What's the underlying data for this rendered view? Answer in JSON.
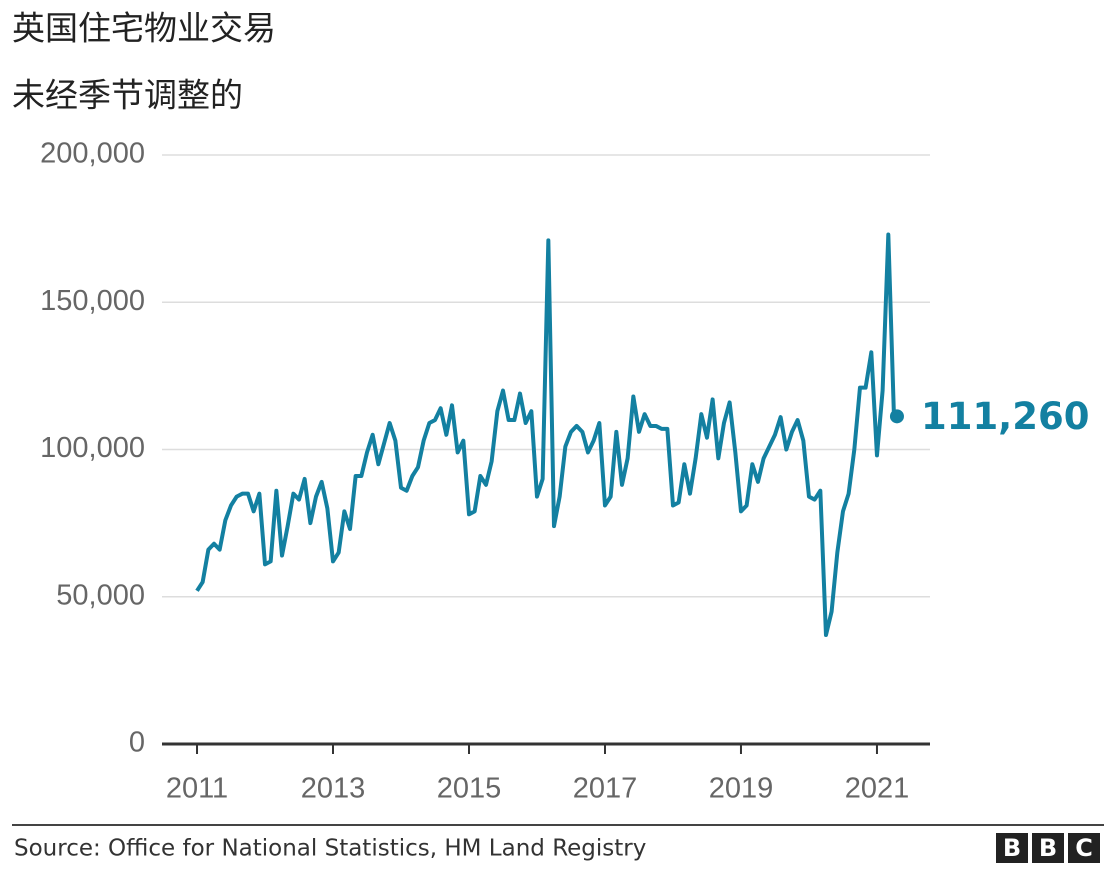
{
  "chart_data": {
    "type": "line",
    "title": "英国住宅物业交易",
    "subtitle": "未经季节调整的",
    "source": "Source: Office for National Statistics, HM Land Registry",
    "logo": [
      "B",
      "B",
      "C"
    ],
    "x": [
      2011,
      2011.083,
      2011.167,
      2011.25,
      2011.333,
      2011.417,
      2011.5,
      2011.583,
      2011.667,
      2011.75,
      2011.833,
      2011.917,
      2012,
      2012.083,
      2012.167,
      2012.25,
      2012.333,
      2012.417,
      2012.5,
      2012.583,
      2012.667,
      2012.75,
      2012.833,
      2012.917,
      2013,
      2013.083,
      2013.167,
      2013.25,
      2013.333,
      2013.417,
      2013.5,
      2013.583,
      2013.667,
      2013.75,
      2013.833,
      2013.917,
      2014,
      2014.083,
      2014.167,
      2014.25,
      2014.333,
      2014.417,
      2014.5,
      2014.583,
      2014.667,
      2014.75,
      2014.833,
      2014.917,
      2015,
      2015.083,
      2015.167,
      2015.25,
      2015.333,
      2015.417,
      2015.5,
      2015.583,
      2015.667,
      2015.75,
      2015.833,
      2015.917,
      2016,
      2016.083,
      2016.167,
      2016.25,
      2016.333,
      2016.417,
      2016.5,
      2016.583,
      2016.667,
      2016.75,
      2016.833,
      2016.917,
      2017,
      2017.083,
      2017.167,
      2017.25,
      2017.333,
      2017.417,
      2017.5,
      2017.583,
      2017.667,
      2017.75,
      2017.833,
      2017.917,
      2018,
      2018.083,
      2018.167,
      2018.25,
      2018.333,
      2018.417,
      2018.5,
      2018.583,
      2018.667,
      2018.75,
      2018.833,
      2018.917,
      2019,
      2019.083,
      2019.167,
      2019.25,
      2019.333,
      2019.417,
      2019.5,
      2019.583,
      2019.667,
      2019.75,
      2019.833,
      2019.917,
      2020,
      2020.083,
      2020.167,
      2020.25,
      2020.333,
      2020.417,
      2020.5,
      2020.583,
      2020.667,
      2020.75,
      2020.833,
      2020.917,
      2021,
      2021.083,
      2021.167,
      2021.25
    ],
    "series": [
      {
        "name": "Transactions",
        "color": "#1380a1",
        "values": [
          52000,
          55000,
          66000,
          68000,
          66000,
          76000,
          81000,
          84000,
          85000,
          85000,
          79000,
          85000,
          61000,
          62000,
          86000,
          64000,
          74000,
          85000,
          83000,
          90000,
          75000,
          84000,
          89000,
          80000,
          62000,
          65000,
          79000,
          73000,
          91000,
          91000,
          99000,
          105000,
          95000,
          102000,
          109000,
          103000,
          87000,
          86000,
          91000,
          94000,
          103000,
          109000,
          110000,
          114000,
          105000,
          115000,
          99000,
          103000,
          78000,
          79000,
          91000,
          88000,
          96000,
          113000,
          120000,
          110000,
          110000,
          119000,
          109000,
          113000,
          84000,
          90000,
          171000,
          74000,
          84000,
          101000,
          106000,
          108000,
          106000,
          99000,
          103000,
          109000,
          81000,
          84000,
          106000,
          88000,
          97000,
          118000,
          106000,
          112000,
          108000,
          108000,
          107000,
          107000,
          81000,
          82000,
          95000,
          85000,
          97000,
          112000,
          104000,
          117000,
          97000,
          109000,
          116000,
          99000,
          79000,
          81000,
          95000,
          89000,
          97000,
          101000,
          105000,
          111000,
          100000,
          106000,
          110000,
          103000,
          84000,
          83000,
          86000,
          37000,
          45000,
          65000,
          79000,
          85000,
          100000,
          121000,
          121000,
          133000,
          98000,
          120000,
          173000,
          111260
        ],
        "value_labels": [
          null,
          null,
          null,
          null,
          null,
          null,
          null,
          null,
          null,
          null,
          null,
          null,
          null,
          null,
          null,
          null,
          null,
          null,
          null,
          null,
          null,
          null,
          null,
          null,
          null,
          null,
          null,
          null,
          null,
          null,
          null,
          null,
          null,
          null,
          null,
          null,
          null,
          null,
          null,
          null,
          null,
          null,
          null,
          null,
          null,
          null,
          null,
          null,
          null,
          null,
          null,
          null,
          null,
          null,
          null,
          null,
          null,
          null,
          null,
          null,
          null,
          null,
          null,
          null,
          null,
          null,
          null,
          null,
          null,
          null,
          null,
          null,
          null,
          null,
          null,
          null,
          null,
          null,
          null,
          null,
          null,
          null,
          null,
          null,
          null,
          null,
          null,
          null,
          null,
          null,
          null,
          null,
          null,
          null,
          null,
          null,
          null,
          null,
          null,
          null,
          null,
          null,
          null,
          null,
          null,
          null,
          null,
          null,
          null,
          null,
          null,
          null,
          null,
          null,
          null,
          null,
          null,
          null,
          null,
          null,
          null,
          null,
          null,
          "111,260"
        ]
      }
    ],
    "xlim": [
      2010.485,
      2021.78
    ],
    "xticks": [
      2011,
      2013,
      2015,
      2017,
      2019,
      2021
    ],
    "ylim": [
      0,
      200000
    ],
    "yticks": [
      0,
      {
        "value": 50000,
        "label": "50,000"
      },
      {
        "value": 100000,
        "label": "100,000"
      },
      {
        "value": 150000,
        "label": "150,000"
      },
      {
        "value": 200000,
        "label": "200,000"
      }
    ],
    "grid": true
  }
}
